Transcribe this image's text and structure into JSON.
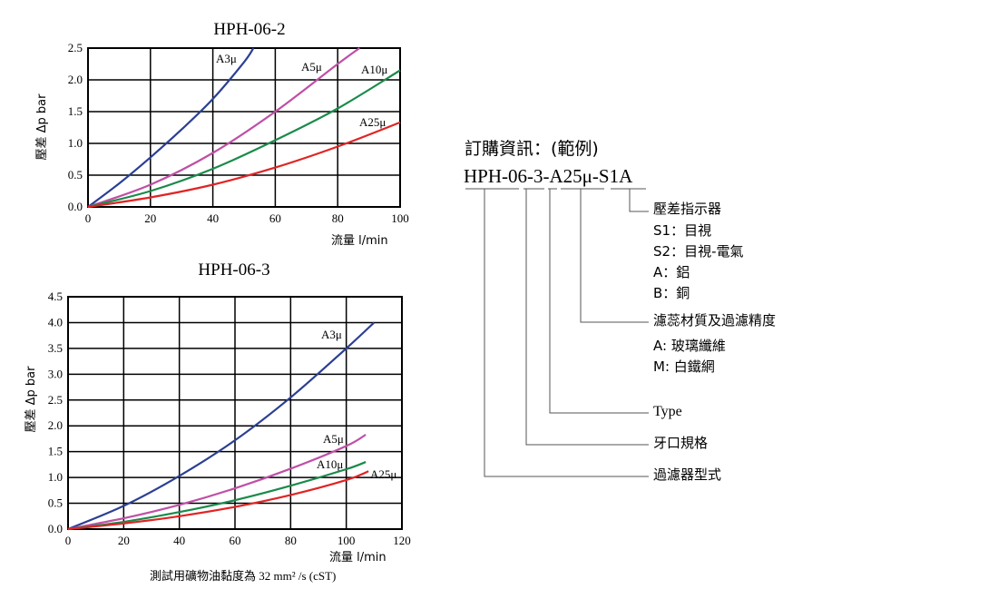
{
  "chart_data": [
    {
      "type": "line",
      "title": "HPH-06-2",
      "xlabel": "流量 l/min",
      "ylabel": "壓差 Δp bar",
      "xlim": [
        0,
        100
      ],
      "ylim": [
        0,
        2.5
      ],
      "x_ticks": [
        "0",
        "20",
        "40",
        "60",
        "80",
        "100"
      ],
      "y_ticks": [
        "0.0",
        "0.5",
        "1.0",
        "1.5",
        "2.0",
        "2.5"
      ],
      "grid": true,
      "series": [
        {
          "name": "A3μ",
          "color": "#2b3f93",
          "x": [
            0,
            10,
            20,
            30,
            40,
            50,
            53
          ],
          "y": [
            0,
            0.37,
            0.78,
            1.22,
            1.7,
            2.28,
            2.5
          ]
        },
        {
          "name": "A5μ",
          "color": "#c04fa5",
          "x": [
            0,
            20,
            40,
            60,
            80,
            87
          ],
          "y": [
            0,
            0.35,
            0.85,
            1.5,
            2.25,
            2.5
          ]
        },
        {
          "name": "A10μ",
          "color": "#1a8a4a",
          "x": [
            0,
            20,
            40,
            60,
            80,
            100
          ],
          "y": [
            0,
            0.25,
            0.6,
            1.05,
            1.55,
            2.15
          ]
        },
        {
          "name": "A25μ",
          "color": "#e02424",
          "x": [
            0,
            20,
            40,
            60,
            80,
            100
          ],
          "y": [
            0,
            0.15,
            0.35,
            0.62,
            0.95,
            1.33
          ]
        }
      ]
    },
    {
      "type": "line",
      "title": "HPH-06-3",
      "xlabel": "流量 l/min",
      "ylabel": "壓差 Δp bar",
      "xlim": [
        0,
        120
      ],
      "ylim": [
        0,
        4.5
      ],
      "x_ticks": [
        "0",
        "20",
        "40",
        "60",
        "80",
        "100",
        "120"
      ],
      "y_ticks": [
        "0.0",
        "0.5",
        "1.0",
        "1.5",
        "2.0",
        "2.5",
        "3.0",
        "3.5",
        "4.0",
        "4.5"
      ],
      "grid": true,
      "series": [
        {
          "name": "A3μ",
          "color": "#2b3f93",
          "x": [
            0,
            20,
            40,
            60,
            80,
            100,
            110
          ],
          "y": [
            0,
            0.45,
            1.03,
            1.72,
            2.55,
            3.5,
            4.0
          ]
        },
        {
          "name": "A5μ",
          "color": "#c04fa5",
          "x": [
            0,
            20,
            40,
            60,
            80,
            100,
            107
          ],
          "y": [
            0,
            0.21,
            0.47,
            0.79,
            1.17,
            1.61,
            1.83
          ]
        },
        {
          "name": "A10μ",
          "color": "#1a8a4a",
          "x": [
            0,
            20,
            40,
            60,
            80,
            100,
            107
          ],
          "y": [
            0,
            0.14,
            0.33,
            0.56,
            0.84,
            1.16,
            1.3
          ]
        },
        {
          "name": "A25μ",
          "color": "#e02424",
          "x": [
            0,
            20,
            40,
            60,
            80,
            100,
            108
          ],
          "y": [
            0,
            0.11,
            0.25,
            0.43,
            0.66,
            0.95,
            1.12
          ]
        }
      ]
    }
  ],
  "note": "測試用礦物油黏度為 32 mm² /s (cST)",
  "order": {
    "heading": "訂購資訊：(範例)",
    "code": "HPH-06-3-A25μ-S1A",
    "items": [
      {
        "lines": [
          "壓差指示器",
          "S1：目視",
          "S2：目視-電氣",
          "A：鋁",
          "B：銅"
        ]
      },
      {
        "lines": [
          "濾蕊材質及過濾精度",
          "A: 玻璃纖維",
          "M: 白鐵網"
        ]
      },
      {
        "lines": [
          "Type"
        ]
      },
      {
        "lines": [
          "牙口規格"
        ]
      },
      {
        "lines": [
          "過濾器型式"
        ]
      }
    ]
  }
}
